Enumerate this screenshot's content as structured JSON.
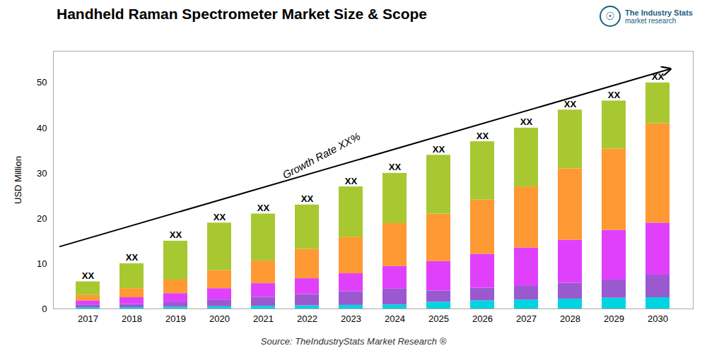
{
  "chart_data": {
    "type": "bar",
    "title": "Handheld Raman Spectrometer Market Size & Scope",
    "y_label": "USD Million",
    "source": "Source: TheIndustryStats Market Research ®",
    "categories": [
      "2017",
      "2018",
      "2019",
      "2020",
      "2021",
      "2022",
      "2023",
      "2024",
      "2025",
      "2026",
      "2027",
      "2028",
      "2029",
      "2030"
    ],
    "series": [
      {
        "color": "#00d4e0",
        "values": [
          0.3,
          0.3,
          0.4,
          0.5,
          0.6,
          0.7,
          0.8,
          0.9,
          1.5,
          1.8,
          2.0,
          2.2,
          2.4,
          2.5
        ]
      },
      {
        "color": "#9b59d0",
        "values": [
          0.5,
          0.7,
          1.0,
          1.5,
          2.0,
          2.5,
          3.0,
          3.5,
          2.5,
          2.8,
          3.0,
          3.5,
          4.0,
          5.0
        ]
      },
      {
        "color": "#e040fb",
        "values": [
          1.0,
          1.5,
          2.0,
          2.5,
          3.0,
          3.5,
          4.0,
          5.0,
          6.5,
          7.5,
          8.5,
          9.5,
          11.0,
          11.5
        ]
      },
      {
        "color": "#ff9933",
        "values": [
          1.2,
          2.0,
          3.0,
          4.0,
          5.0,
          6.5,
          8.0,
          9.5,
          10.5,
          12.0,
          13.5,
          15.8,
          18.0,
          22.0
        ]
      },
      {
        "color": "#a8c832",
        "values": [
          3.0,
          5.5,
          8.6,
          10.5,
          10.4,
          9.8,
          11.2,
          11.1,
          13.0,
          12.9,
          13.0,
          13.0,
          10.6,
          9.0
        ]
      }
    ],
    "stacked": true,
    "bar_labels": [
      "XX",
      "XX",
      "XX",
      "XX",
      "XX",
      "XX",
      "XX",
      "XX",
      "XX",
      "XX",
      "XX",
      "XX",
      "XX",
      "XX"
    ],
    "annotations": [
      "Growth Rate XX%"
    ],
    "logo": [
      "☉",
      "The Industry Stats",
      "market research"
    ],
    "ylim": [
      0,
      57
    ],
    "yticks": [
      0,
      10,
      20,
      30,
      40,
      50
    ],
    "grid": false
  }
}
